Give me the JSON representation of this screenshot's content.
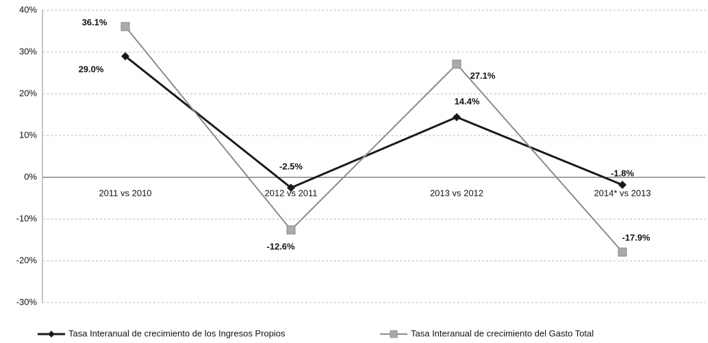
{
  "chart_data": {
    "type": "line",
    "categories": [
      "2011 vs 2010",
      "2012 vs 2011",
      "2013 vs 2012",
      "2014* vs 2013"
    ],
    "series": [
      {
        "name": "Tasa Interanual de crecimiento de los Ingresos Propios",
        "color": "#1a1a1a",
        "values": [
          29.0,
          -2.5,
          14.4,
          -1.8
        ],
        "value_labels": [
          "29.0%",
          "-2.5%",
          "14.4%",
          "-1.8%"
        ]
      },
      {
        "name": "Tasa Interanual de crecimiento  del Gasto Total",
        "color": "#8a8a8a",
        "values": [
          36.1,
          -12.6,
          27.1,
          -17.9
        ],
        "value_labels": [
          "36.1%",
          "-12.6%",
          "27.1%",
          "-17.9%"
        ]
      }
    ],
    "ylim": [
      -30,
      40
    ],
    "yticks": [
      {
        "value": -30,
        "label": "-30%"
      },
      {
        "value": -20,
        "label": "-20%"
      },
      {
        "value": -10,
        "label": "-10%"
      },
      {
        "value": 0,
        "label": "0%"
      },
      {
        "value": 10,
        "label": "10%"
      },
      {
        "value": 20,
        "label": "20%"
      },
      {
        "value": 30,
        "label": "30%"
      },
      {
        "value": 40,
        "label": "40%"
      }
    ],
    "grid": true,
    "legend": "bottom"
  }
}
